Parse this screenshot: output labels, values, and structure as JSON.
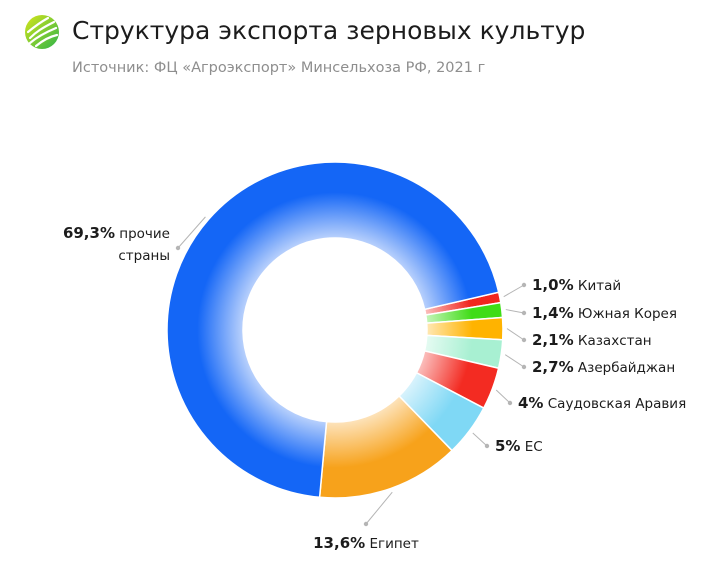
{
  "header": {
    "title": "Структура экспорта зерновых культур",
    "subtitle": "Источник: ФЦ «Агроэкспорт» Минсельхоза РФ, 2021 г"
  },
  "chart_data": {
    "type": "pie",
    "donut": true,
    "title": "Структура экспорта зерновых культур",
    "subtitle": "Источник: ФЦ «Агроэкспорт» Минсельхоза РФ, 2021 г",
    "slices": [
      {
        "name": "Китай",
        "value": 1.0,
        "label": "1,0%",
        "color": "#f0261e"
      },
      {
        "name": "Южная Корея",
        "value": 1.4,
        "label": "1,4%",
        "color": "#3fdc16"
      },
      {
        "name": "Казахстан",
        "value": 2.1,
        "label": "2,1%",
        "color": "#ffb300"
      },
      {
        "name": "Азербайджан",
        "value": 2.7,
        "label": "2,7%",
        "color": "#a8f0d2"
      },
      {
        "name": "Саудовская Аравия",
        "value": 4.0,
        "label": "4%",
        "color": "#f32b22"
      },
      {
        "name": "ЕС",
        "value": 5.0,
        "label": "5%",
        "color": "#7fd8f5"
      },
      {
        "name": "Египет",
        "value": 13.6,
        "label": "13,6%",
        "color": "#f7a21b"
      },
      {
        "name": "прочие страны",
        "value": 69.3,
        "label": "69,3%",
        "color": "#1466f6"
      }
    ]
  }
}
